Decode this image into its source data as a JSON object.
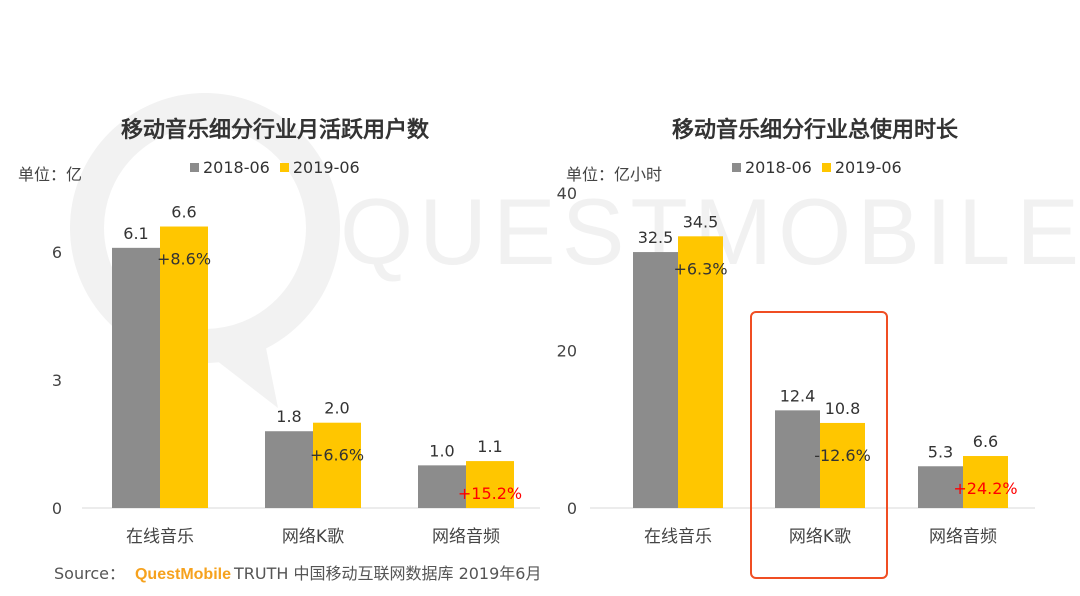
{
  "watermark": "QUESTMOBILE",
  "colors": {
    "s2018": "#8c8c8c",
    "s2019": "#ffc600",
    "negative_label": "#333333",
    "positive_red": "#ff0000",
    "highlight": "#f04e23"
  },
  "chart_data": [
    {
      "type": "bar",
      "title": "移动音乐细分行业月活跃用户数",
      "unit": "单位：亿",
      "categories": [
        "在线音乐",
        "网络K歌",
        "网络音频"
      ],
      "series": [
        {
          "name": "2018-06",
          "values": [
            6.1,
            1.8,
            1.0
          ]
        },
        {
          "name": "2019-06",
          "values": [
            6.6,
            2.0,
            1.1
          ]
        }
      ],
      "value_labels_2018": [
        "6.1",
        "1.8",
        "1.0"
      ],
      "value_labels_2019": [
        "6.6",
        "2.0",
        "1.1"
      ],
      "growth": [
        "+8.6%",
        "+6.6%",
        "+15.2%"
      ],
      "growth_red": [
        false,
        false,
        true
      ],
      "yticks": [
        "0",
        "3",
        "6"
      ],
      "ytick_values": [
        0,
        3,
        6
      ],
      "ylim": [
        0,
        6.87
      ],
      "legend_position": "top"
    },
    {
      "type": "bar",
      "title": "移动音乐细分行业总使用时长",
      "unit": "单位：亿小时",
      "categories": [
        "在线音乐",
        "网络K歌",
        "网络音频"
      ],
      "series": [
        {
          "name": "2018-06",
          "values": [
            32.5,
            12.4,
            5.3
          ]
        },
        {
          "name": "2019-06",
          "values": [
            34.5,
            10.8,
            6.6
          ]
        }
      ],
      "value_labels_2018": [
        "32.5",
        "12.4",
        "5.3"
      ],
      "value_labels_2019": [
        "34.5",
        "10.8",
        "6.6"
      ],
      "growth": [
        "+6.3%",
        "-12.6%",
        "+24.2%"
      ],
      "growth_red": [
        false,
        false,
        true
      ],
      "yticks": [
        "0",
        "20",
        "40"
      ],
      "ytick_values": [
        0,
        20,
        40
      ],
      "ylim": [
        0,
        40
      ],
      "legend_position": "top",
      "highlighted_category": "网络K歌"
    }
  ],
  "source": {
    "label": "Source：",
    "brand": "QuestMobile",
    "text": "TRUTH 中国移动互联网数据库 2019年6月"
  }
}
